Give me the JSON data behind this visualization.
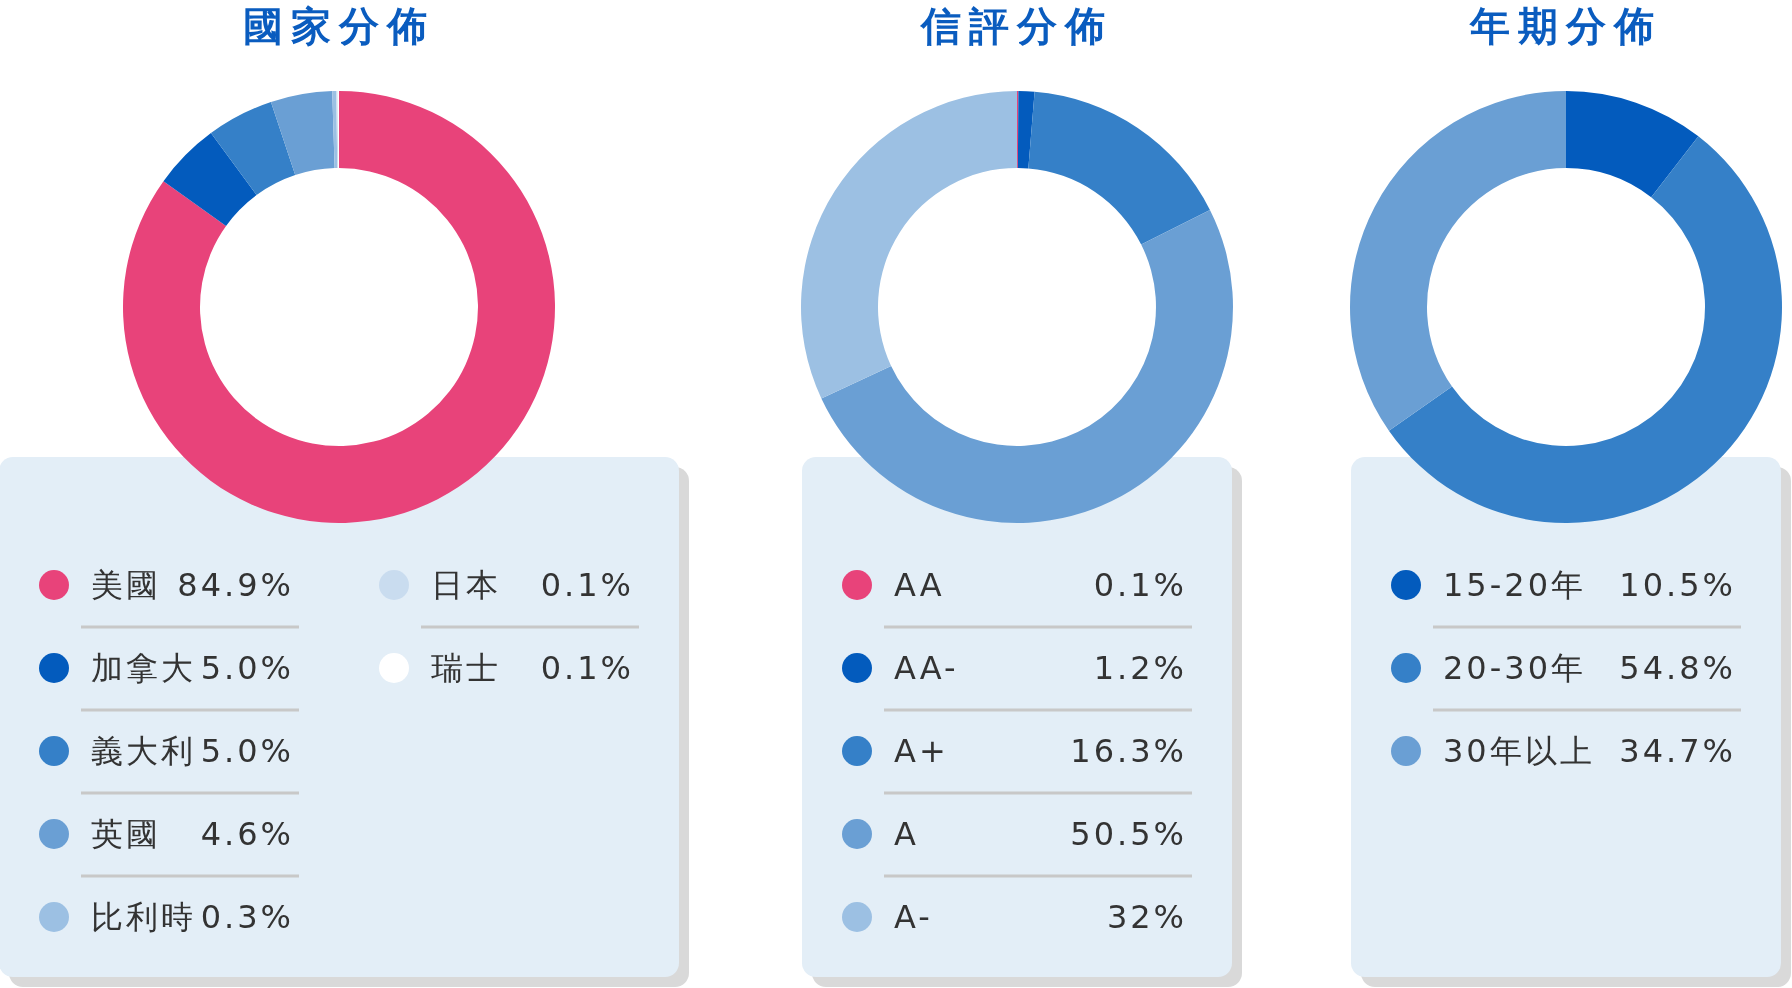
{
  "chart_data": [
    {
      "type": "donut",
      "title": "國家分佈",
      "categories": [
        "美國",
        "加拿大",
        "義大利",
        "英國",
        "比利時",
        "日本",
        "瑞士"
      ],
      "values": [
        84.9,
        5.0,
        5.0,
        4.6,
        0.3,
        0.1,
        0.1
      ],
      "value_labels": [
        "84.9%",
        "5.0%",
        "5.0%",
        "4.6%",
        "0.3%",
        "0.1%",
        "0.1%"
      ],
      "colors": [
        "#e8437a",
        "#035bbd",
        "#3580c8",
        "#6a9fd4",
        "#9cc0e3",
        "#c9dcef",
        "#ffffff"
      ],
      "legend": "bottom"
    },
    {
      "type": "donut",
      "title": "信評分佈",
      "categories": [
        "AA",
        "AA-",
        "A+",
        "A",
        "A-"
      ],
      "values": [
        0.1,
        1.2,
        16.3,
        50.5,
        32
      ],
      "value_labels": [
        "0.1%",
        "1.2%",
        "16.3%",
        "50.5%",
        "32%"
      ],
      "colors": [
        "#e8437a",
        "#035bbd",
        "#3580c8",
        "#6a9fd4",
        "#9cc0e3"
      ],
      "legend": "bottom"
    },
    {
      "type": "donut",
      "title": "年期分佈",
      "categories": [
        "15-20年",
        "20-30年",
        "30年以上"
      ],
      "values": [
        10.5,
        54.8,
        34.7
      ],
      "value_labels": [
        "10.5%",
        "54.8%",
        "34.7%"
      ],
      "colors": [
        "#035bbd",
        "#3580c8",
        "#6a9fd4"
      ],
      "legend": "bottom"
    }
  ]
}
